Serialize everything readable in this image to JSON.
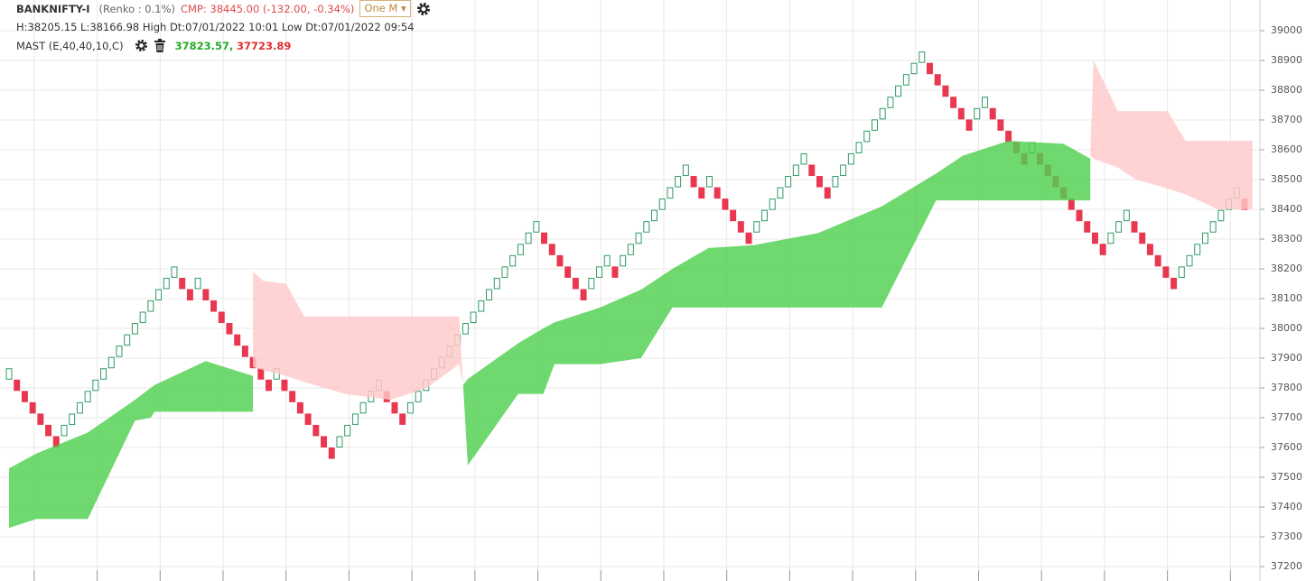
{
  "header": {
    "symbol": "BANKNIFTY-I",
    "chart_kind": "(Renko : 0.1%)",
    "cmp": "CMP: 38445.00 (-132.00, -0.34%)",
    "interval": "One M",
    "stats": "H:38205.15 L:38166.98 High Dt:07/01/2022 10:01 Low Dt:07/01/2022 09:54",
    "indicator": "MAST (E,40,40,10,C)",
    "indicator_upper": "37823.57",
    "separator": ",",
    "indicator_lower": "37723.89"
  },
  "chart_data": {
    "type": "renko",
    "brick_size": 38,
    "up_color": "#2f9a66",
    "down_color": "#e8384f",
    "values": [
      37866,
      37790,
      37752,
      37714,
      37676,
      37638,
      37600,
      37676,
      37714,
      37752,
      37790,
      37828,
      37866,
      37904,
      37942,
      37980,
      38018,
      38056,
      38094,
      38132,
      38170,
      38208,
      38132,
      38094,
      38170,
      38094,
      38056,
      38018,
      37980,
      37942,
      37904,
      37866,
      37828,
      37790,
      37866,
      37790,
      37752,
      37714,
      37676,
      37638,
      37600,
      37562,
      37638,
      37676,
      37714,
      37752,
      37790,
      37828,
      37752,
      37714,
      37676,
      37752,
      37790,
      37828,
      37866,
      37904,
      37942,
      37980,
      38018,
      38056,
      38094,
      38132,
      38170,
      38208,
      38246,
      38284,
      38322,
      38360,
      38284,
      38246,
      38208,
      38170,
      38132,
      38094,
      38170,
      38208,
      38246,
      38170,
      38246,
      38284,
      38322,
      38360,
      38398,
      38436,
      38474,
      38512,
      38550,
      38474,
      38436,
      38512,
      38436,
      38398,
      38360,
      38322,
      38284,
      38360,
      38398,
      38436,
      38474,
      38512,
      38550,
      38588,
      38512,
      38474,
      38436,
      38512,
      38550,
      38588,
      38626,
      38664,
      38702,
      38740,
      38778,
      38816,
      38854,
      38892,
      38930,
      38854,
      38816,
      38778,
      38740,
      38702,
      38664,
      38740,
      38778,
      38702,
      38664,
      38626,
      38588,
      38550,
      38626,
      38550,
      38512,
      38474,
      38436,
      38398,
      38360,
      38322,
      38284,
      38246,
      38322,
      38360,
      38398,
      38322,
      38284,
      38246,
      38208,
      38170,
      38132,
      38208,
      38246,
      38284,
      38322,
      38360,
      38398,
      38436,
      38474,
      38398
    ],
    "bands": [
      {
        "color": "#4fd04f",
        "x": [
          0,
          3.5,
          10,
          16,
          18,
          18.5,
          25,
          31
        ],
        "upper": [
          37530,
          37580,
          37650,
          37760,
          37800,
          37810,
          37890,
          37840
        ],
        "lower": [
          37330,
          37360,
          37360,
          37690,
          37700,
          37720,
          37720,
          37720
        ]
      },
      {
        "color": "#ffc9c9",
        "x": [
          31,
          32.3,
          35.2,
          37.5,
          42.7,
          48.5,
          53.1,
          57.2,
          57.7
        ],
        "upper": [
          38190,
          38160,
          38150,
          38040,
          38040,
          38040,
          38040,
          38040,
          37810
        ],
        "lower": [
          37870,
          37860,
          37840,
          37820,
          37780,
          37760,
          37800,
          37880,
          37810
        ]
      },
      {
        "color": "#4fd04f",
        "x": [
          57.7,
          58.3,
          64.7,
          67.9,
          69.3,
          75.1,
          80.3,
          84.3,
          88.9,
          94.7,
          102.8,
          110.9,
          117.8,
          121.2,
          127,
          134,
          137.4
        ],
        "upper": [
          37810,
          37830,
          37950,
          38000,
          38020,
          38070,
          38130,
          38200,
          38270,
          38280,
          38320,
          38410,
          38520,
          38580,
          38630,
          38620,
          38570
        ],
        "lower": [
          37810,
          37540,
          37780,
          37780,
          37880,
          37880,
          37900,
          38070,
          38070,
          38070,
          38070,
          38070,
          38430,
          38430,
          38430,
          38430,
          38430
        ]
      },
      {
        "color": "#ffc9c9",
        "x": [
          137.4,
          137.8,
          140.9,
          143.2,
          147.2,
          149.5,
          153.6,
          158
        ],
        "upper": [
          38580,
          38900,
          38730,
          38730,
          38730,
          38630,
          38630,
          38630
        ],
        "lower": [
          38580,
          38570,
          38540,
          38500,
          38470,
          38450,
          38400,
          38400
        ]
      }
    ],
    "ylim": [
      37200,
      39000
    ],
    "yticks": [
      37200,
      37300,
      37400,
      37500,
      37600,
      37700,
      37800,
      37900,
      38000,
      38100,
      38200,
      38300,
      38400,
      38500,
      38600,
      38700,
      38800,
      38900,
      39000
    ],
    "xticks": [
      3.2,
      11.2,
      19.2,
      27.2,
      35.2,
      43.2,
      51.2,
      59.2,
      67.2,
      75.2,
      83.2,
      91.2,
      99.2,
      107.2,
      115.2,
      123.2,
      131.2,
      139.2,
      147.2,
      155.2
    ],
    "grid": true
  }
}
